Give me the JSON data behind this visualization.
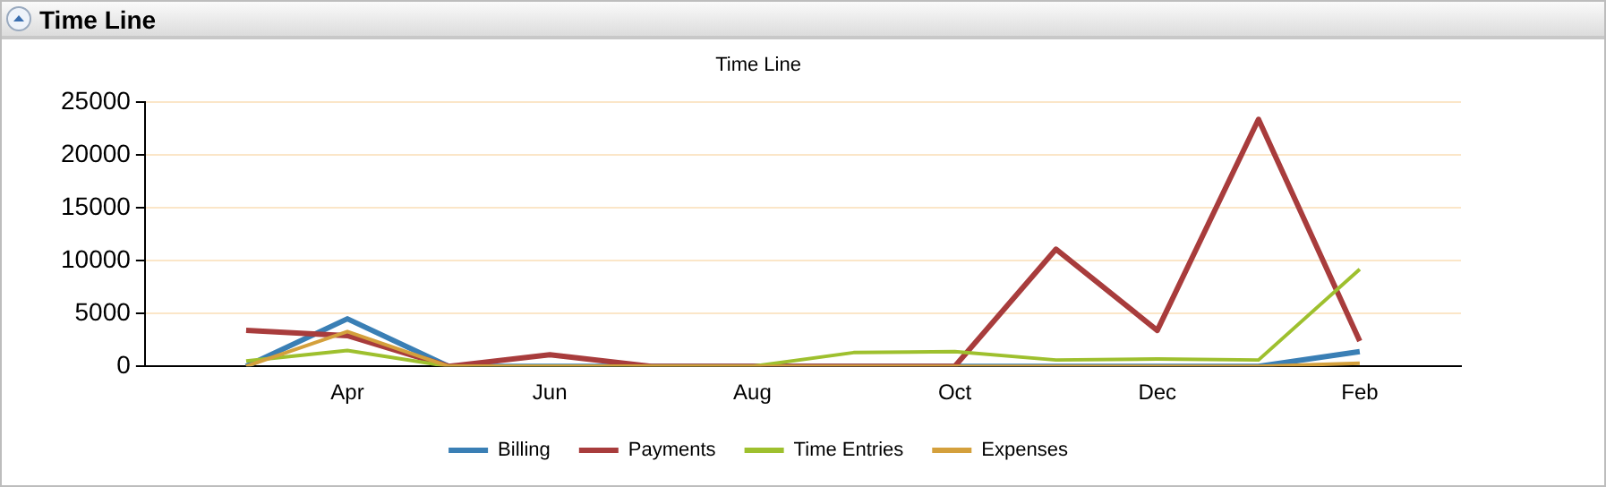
{
  "chart_data": {
    "type": "line",
    "title": "Time Line",
    "annotations": [
      "Time Line"
    ],
    "categories": [
      null,
      "Apr",
      null,
      "Jun",
      null,
      "Aug",
      null,
      "Oct",
      null,
      "Dec",
      null,
      "Feb"
    ],
    "series": [
      {
        "name": "Billing",
        "color": "#3a7fb5",
        "values": [
          0,
          4500,
          0,
          0,
          0,
          0,
          0,
          0,
          0,
          0,
          0,
          1400
        ]
      },
      {
        "name": "Payments",
        "color": "#a83c3c",
        "values": [
          3400,
          2900,
          0,
          1100,
          0,
          0,
          0,
          0,
          11100,
          3400,
          23400,
          2400
        ]
      },
      {
        "name": "Time Entries",
        "color": "#9ec02e",
        "values": [
          500,
          1500,
          0,
          0,
          0,
          0,
          1300,
          1400,
          600,
          700,
          600,
          9200
        ]
      },
      {
        "name": "Expenses",
        "color": "#d4a03c",
        "values": [
          0,
          3300,
          0,
          0,
          0,
          0,
          0,
          0,
          0,
          0,
          0,
          300
        ]
      }
    ],
    "ylim": [
      0,
      25000
    ],
    "yticks": [
      0,
      5000,
      10000,
      15000,
      20000,
      25000
    ],
    "grid": "y",
    "legend": "bottom",
    "marker": "none",
    "line_style": "solid"
  }
}
